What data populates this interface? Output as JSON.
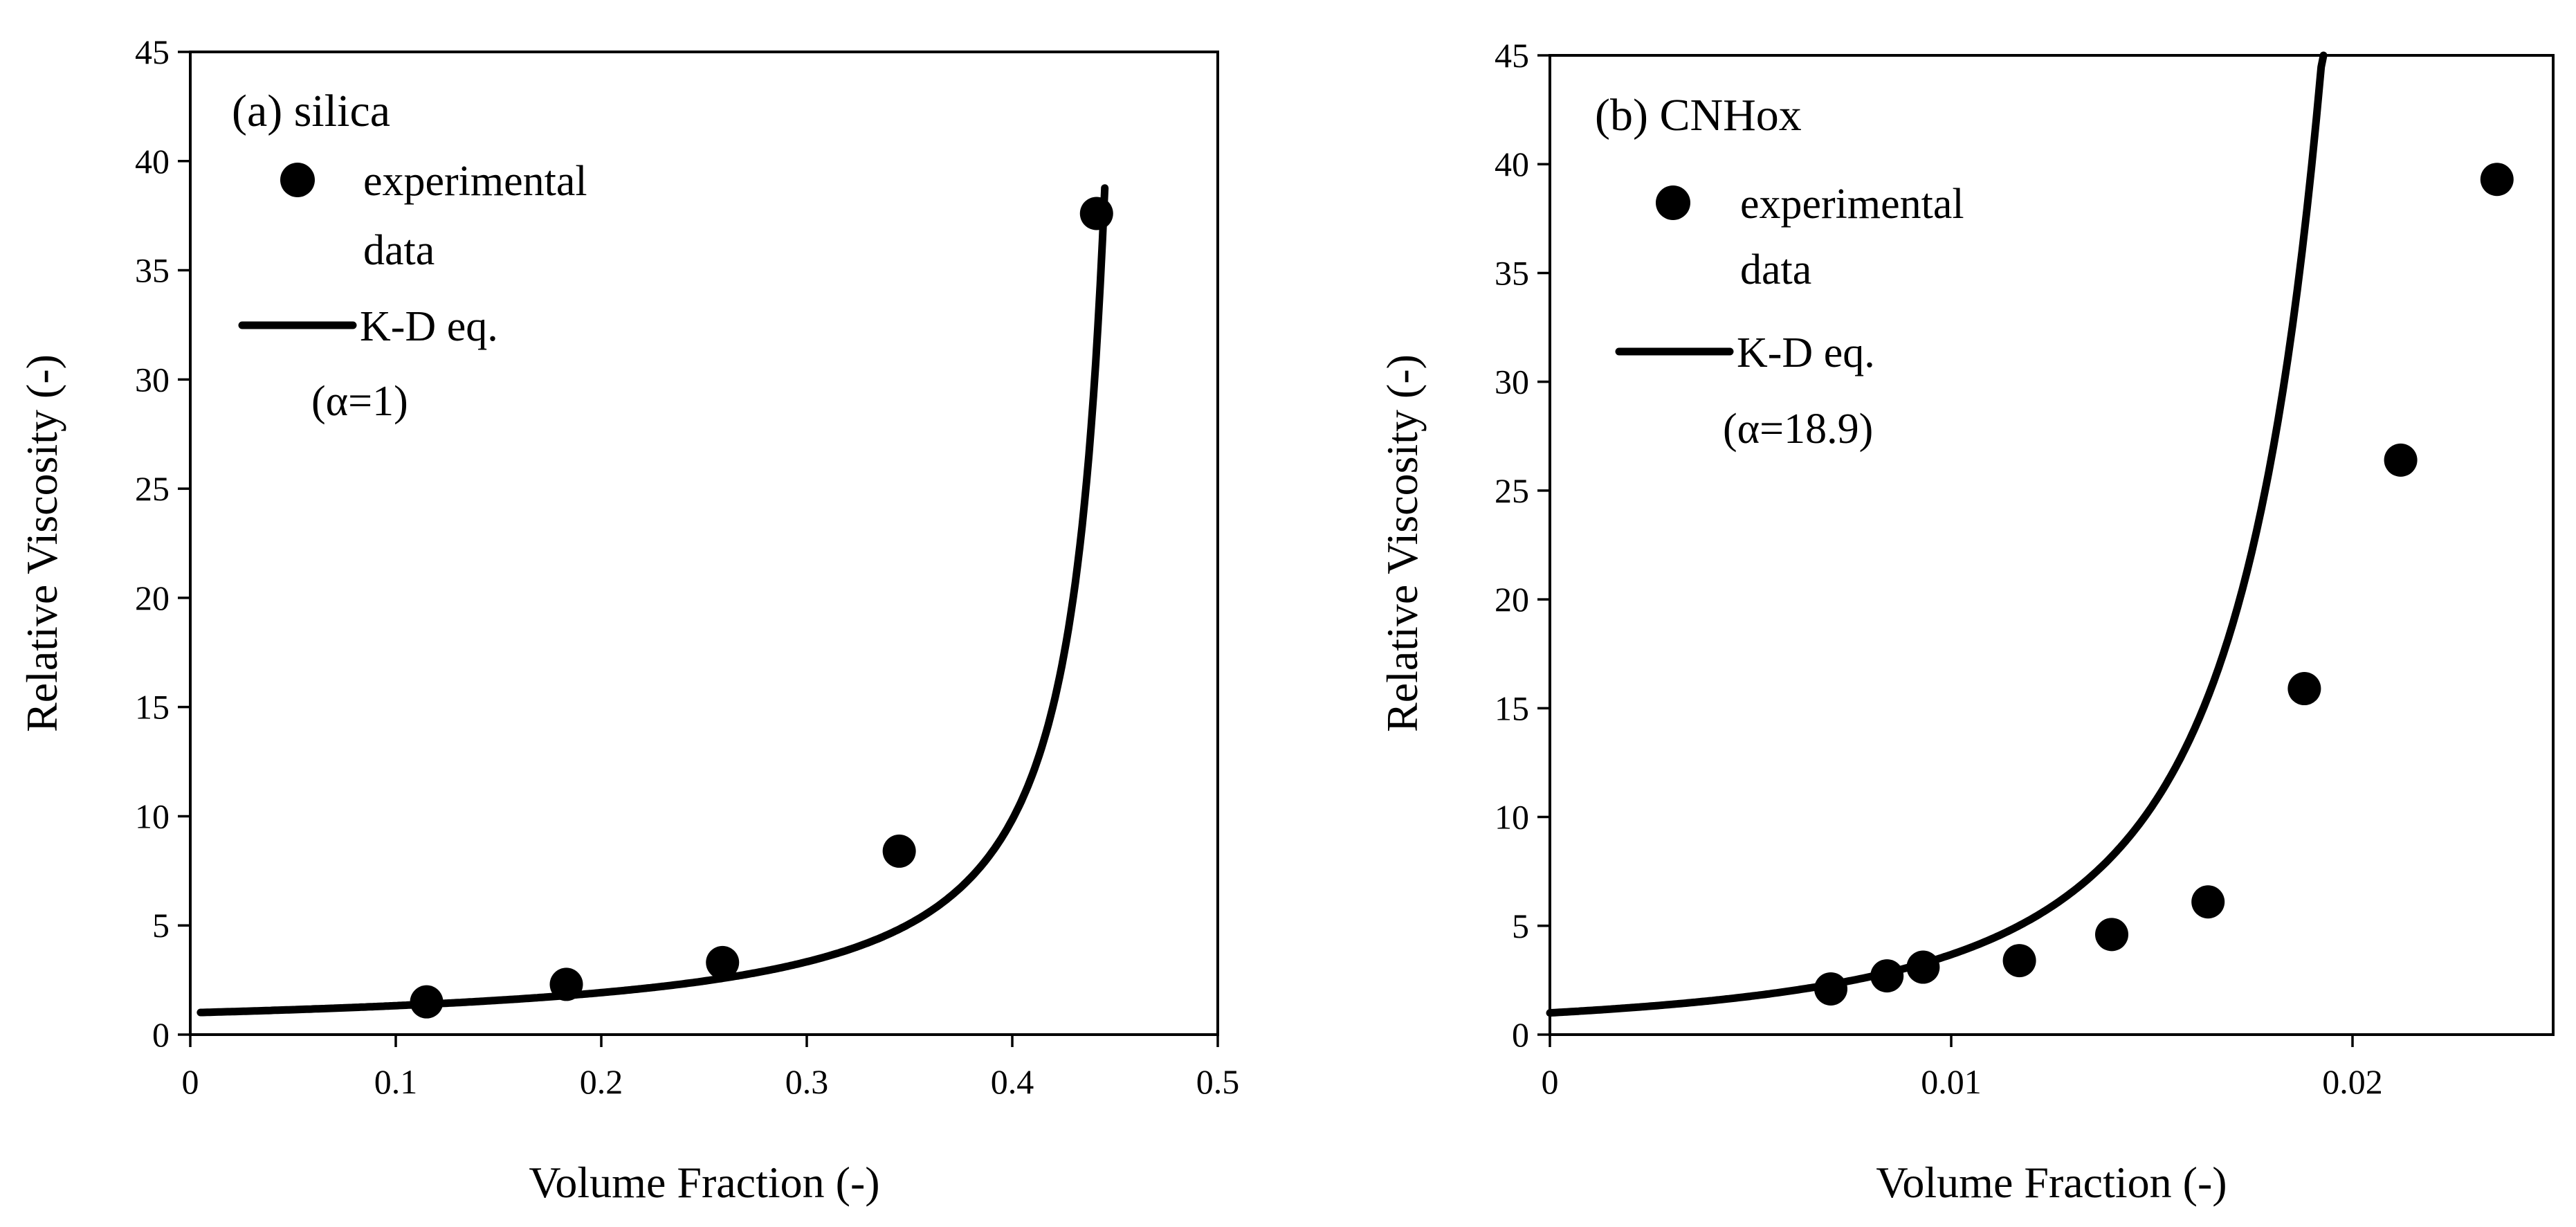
{
  "chart_data": [
    {
      "type": "scatter",
      "panel_label": "(a) silica",
      "xlabel": "Volume Fraction (-)",
      "ylabel": "Relative Viscosity (-)",
      "xlim": [
        0,
        0.5
      ],
      "ylim": [
        0,
        45
      ],
      "xticks": [
        0,
        0.1,
        0.2,
        0.3,
        0.4,
        0.5
      ],
      "xtick_labels": [
        "0",
        "0.1",
        "0.2",
        "0.3",
        "0.4",
        "0.5"
      ],
      "yticks": [
        0,
        5,
        10,
        15,
        20,
        25,
        30,
        35,
        40,
        45
      ],
      "ytick_labels": [
        "0",
        "5",
        "10",
        "15",
        "20",
        "25",
        "30",
        "35",
        "40",
        "45"
      ],
      "legend": {
        "placement": "top-left",
        "points_label_line1": "experimental",
        "points_label_line2": "data",
        "line_label": "K-D eq.",
        "line_param": "(α=1)"
      },
      "series": [
        {
          "name": "experimental data",
          "kind": "points",
          "x": [
            0.115,
            0.183,
            0.259,
            0.345,
            0.441
          ],
          "y": [
            1.5,
            2.3,
            3.3,
            8.4,
            37.6
          ]
        },
        {
          "name": "K-D eq.",
          "kind": "line",
          "model": {
            "alpha": 1,
            "phi_max": 0.465,
            "intrinsic": 2.5
          },
          "x_range": [
            0.005,
            0.445
          ]
        }
      ]
    },
    {
      "type": "scatter",
      "panel_label": "(b) CNHox",
      "xlabel": "Volume Fraction (-)",
      "ylabel": "Relative Viscosity (-)",
      "xlim": [
        0,
        0.025
      ],
      "ylim": [
        0,
        45
      ],
      "xticks": [
        0,
        0.01,
        0.02
      ],
      "xtick_labels": [
        "0",
        "0.01",
        "0.02"
      ],
      "yticks": [
        0,
        5,
        10,
        15,
        20,
        25,
        30,
        35,
        40,
        45
      ],
      "ytick_labels": [
        "0",
        "5",
        "10",
        "15",
        "20",
        "25",
        "30",
        "35",
        "40",
        "45"
      ],
      "legend": {
        "placement": "top-left",
        "points_label_line1": "experimental",
        "points_label_line2": "data",
        "line_label": "K-D eq.",
        "line_param": "(α=18.9)"
      },
      "series": [
        {
          "name": "experimental data",
          "kind": "points",
          "x": [
            0.007,
            0.0084,
            0.0093,
            0.0117,
            0.014,
            0.0164,
            0.0188,
            0.0212,
            0.0236
          ],
          "y": [
            2.1,
            2.7,
            3.1,
            3.4,
            4.6,
            6.1,
            15.9,
            26.4,
            39.3
          ]
        },
        {
          "name": "K-D eq.",
          "kind": "line",
          "model": {
            "alpha": 18.9,
            "phi_max": 0.0246,
            "intrinsic": 2.5
          },
          "x_range": [
            0.0,
            0.0238
          ]
        }
      ]
    }
  ]
}
